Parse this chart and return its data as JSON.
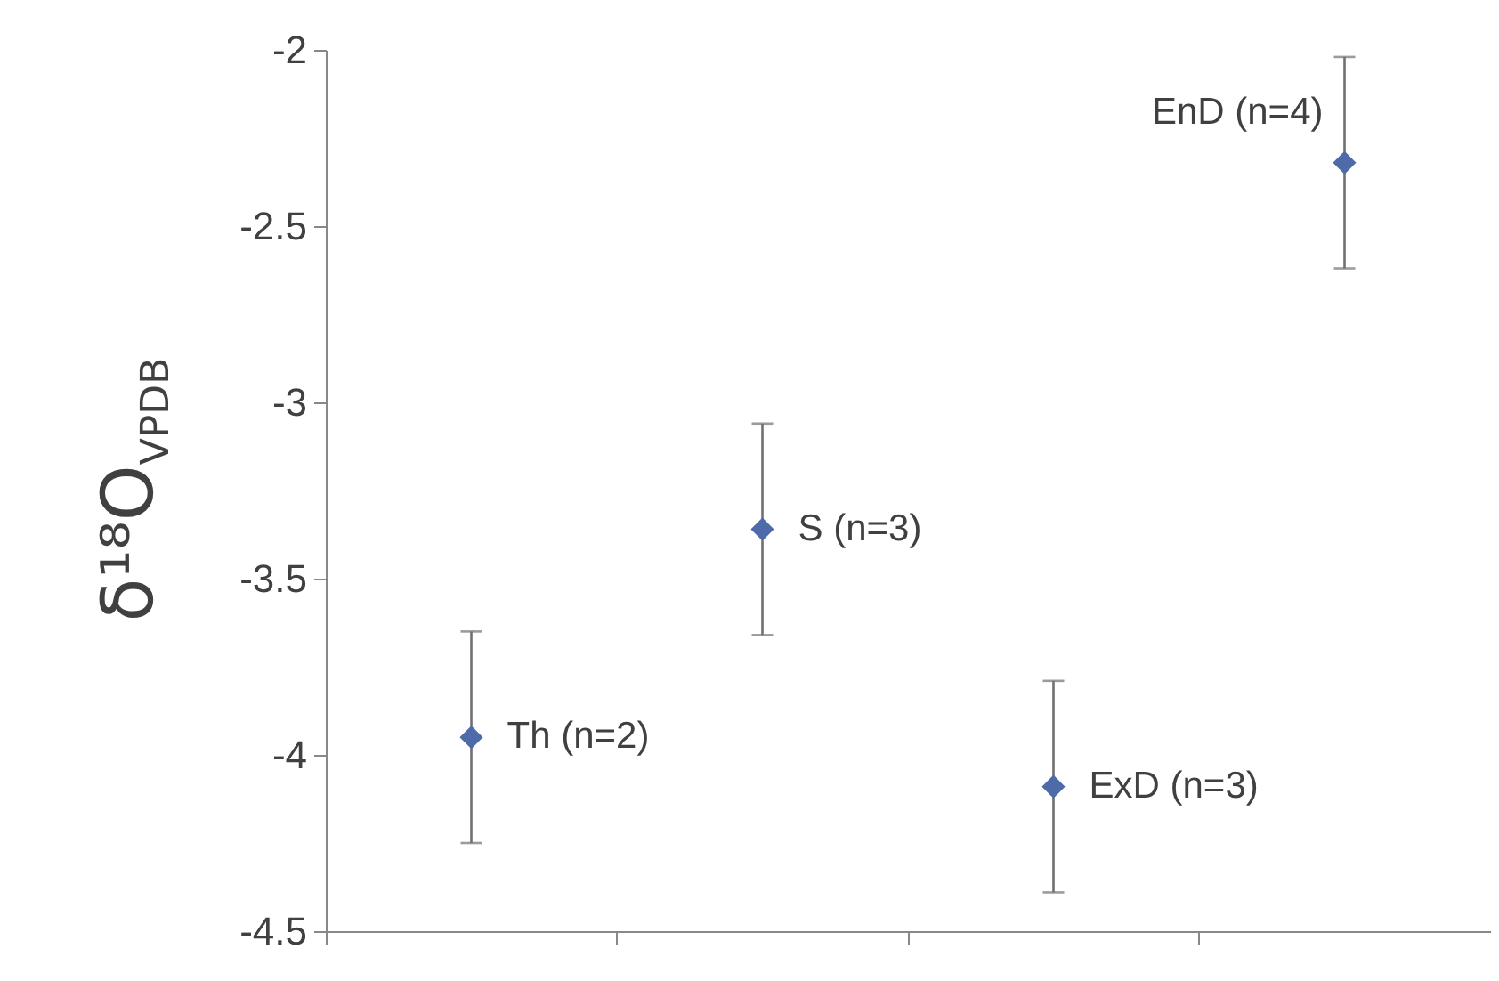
{
  "chart_data": {
    "type": "scatter",
    "ylabel": "δ¹⁸O$_{VPDB}$",
    "categories": [
      null,
      null,
      null,
      null
    ],
    "series": [
      {
        "color": "#4f6aa8",
        "values": [
          -3.95,
          -3.36,
          -4.09,
          -2.32
        ],
        "errors": [
          0.3,
          0.3,
          0.3,
          0.3
        ]
      }
    ],
    "ylim": [
      -4.5,
      -2
    ],
    "yticks": [
      {
        "value": -4.5,
        "label": "-4.5"
      },
      -4,
      {
        "value": -3.5,
        "label": "-3.5"
      },
      -3,
      {
        "value": -2.5,
        "label": "-2.5"
      },
      -2
    ],
    "annotations": [
      "Th (n=2)",
      "S (n=3)",
      "ExD (n=3)",
      "EnD (n=4)"
    ],
    "marker": "diamond",
    "grid": false,
    "tick_labels": "y"
  }
}
